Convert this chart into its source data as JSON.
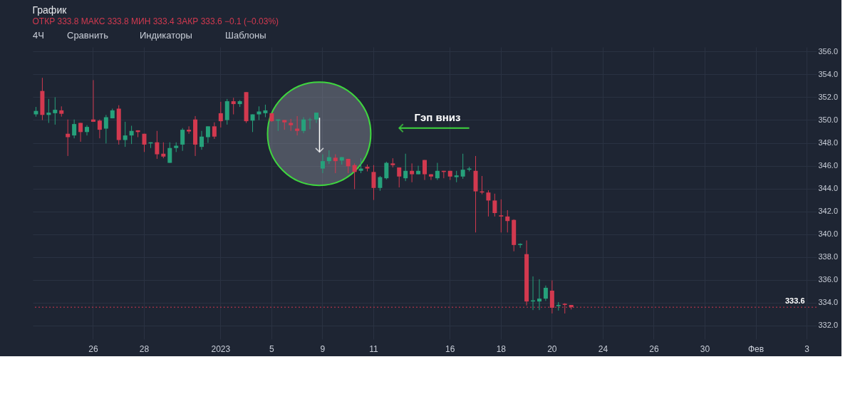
{
  "chart_data": {
    "type": "candlestick",
    "title": "График",
    "subtitle": "ОТКР 333.8 МАКС 333.8 МИН 333.4 ЗАКР 333.6 −0.1 (−0.03%)",
    "annotations": [
      "4Ч",
      "Сравнить",
      "Индикаторы",
      "Шаблоны",
      "Гэп вниз"
    ],
    "categories": [
      null,
      null,
      null,
      null,
      null,
      null,
      null,
      null,
      null,
      "26",
      null,
      null,
      null,
      null,
      null,
      null,
      null,
      "28",
      null,
      null,
      null,
      null,
      null,
      null,
      null,
      null,
      null,
      null,
      null,
      "2023",
      null,
      null,
      null,
      null,
      null,
      null,
      null,
      "5",
      null,
      null,
      null,
      null,
      null,
      null,
      null,
      "9",
      null,
      null,
      null,
      null,
      null,
      null,
      null,
      "11",
      null,
      null,
      null,
      null,
      null,
      null,
      null,
      null,
      null,
      null,
      null,
      "16",
      null,
      null,
      null,
      null,
      null,
      null,
      null,
      "18",
      null,
      null,
      null,
      null,
      null,
      null,
      null,
      "20",
      null,
      null,
      null,
      null,
      null,
      null,
      null,
      "24",
      null,
      null,
      null,
      null,
      null,
      null,
      null,
      "26",
      null,
      null,
      null,
      null,
      null,
      null,
      null,
      "30",
      null,
      null,
      null,
      null,
      null,
      null,
      null,
      "Фев",
      null,
      null,
      null,
      null,
      null,
      null,
      null,
      "3",
      null
    ],
    "ohlc": [
      [
        350.5,
        351.15,
        350.3,
        350.8
      ],
      [
        352.55,
        353.7,
        350.0,
        350.45
      ],
      [
        350.45,
        351.85,
        349.75,
        350.65
      ],
      [
        350.6,
        352.0,
        349.6,
        350.9
      ],
      [
        350.85,
        351.2,
        350.3,
        350.55
      ],
      [
        348.8,
        350.05,
        346.85,
        348.5
      ],
      [
        348.65,
        350.05,
        348.4,
        349.65
      ],
      [
        349.75,
        349.75,
        348.1,
        348.95
      ],
      [
        348.95,
        349.55,
        348.65,
        349.4
      ],
      [
        350.05,
        353.5,
        349.85,
        349.85
      ],
      [
        349.95,
        350.05,
        348.4,
        349.15
      ],
      [
        349.25,
        350.45,
        347.95,
        350.25
      ],
      [
        350.15,
        351.0,
        350.15,
        350.85
      ],
      [
        351.0,
        351.3,
        347.85,
        348.25
      ],
      [
        348.25,
        349.85,
        347.65,
        348.65
      ],
      [
        348.65,
        349.5,
        347.9,
        349.05
      ],
      [
        349.1,
        349.1,
        348.5,
        348.95
      ],
      [
        348.8,
        348.8,
        347.2,
        347.85
      ],
      [
        347.95,
        348.05,
        347.55,
        348.05
      ],
      [
        348.05,
        349.05,
        346.6,
        347.0
      ],
      [
        347.05,
        348.05,
        346.65,
        346.8
      ],
      [
        346.25,
        348.05,
        346.25,
        347.55
      ],
      [
        347.55,
        348.05,
        347.2,
        347.75
      ],
      [
        347.85,
        349.3,
        347.3,
        349.15
      ],
      [
        349.15,
        349.45,
        348.8,
        349.0
      ],
      [
        350.05,
        350.35,
        346.85,
        347.85
      ],
      [
        347.65,
        349.05,
        347.4,
        348.55
      ],
      [
        348.5,
        349.45,
        348.0,
        349.45
      ],
      [
        349.45,
        349.8,
        348.35,
        348.55
      ],
      [
        350.6,
        351.6,
        349.35,
        349.9
      ],
      [
        350.0,
        351.85,
        349.6,
        351.65
      ],
      [
        351.65,
        351.95,
        350.5,
        351.4
      ],
      [
        351.4,
        351.75,
        351.15,
        351.65
      ],
      [
        352.45,
        352.45,
        349.75,
        349.9
      ],
      [
        349.95,
        350.5,
        348.95,
        350.5
      ],
      [
        350.5,
        351.2,
        350.0,
        350.75
      ],
      [
        350.6,
        351.35,
        350.25,
        350.85
      ],
      [
        350.6,
        350.6,
        349.85,
        349.9
      ],
      [
        349.95,
        350.05,
        349.05,
        350.05
      ],
      [
        350.0,
        350.0,
        349.15,
        349.8
      ],
      [
        349.75,
        350.1,
        349.05,
        349.55
      ],
      [
        349.25,
        350.35,
        348.65,
        349.05
      ],
      [
        349.05,
        350.25,
        348.85,
        350.05
      ],
      [
        350.0,
        350.2,
        349.2,
        350.05
      ],
      [
        350.05,
        350.65,
        349.75,
        350.65
      ],
      [
        345.75,
        347.0,
        345.35,
        346.4
      ],
      [
        346.4,
        347.35,
        346.15,
        346.75
      ],
      [
        346.7,
        347.0,
        345.35,
        346.4
      ],
      [
        346.45,
        346.75,
        346.1,
        346.75
      ],
      [
        346.6,
        346.6,
        345.35,
        345.95
      ],
      [
        346.05,
        346.2,
        343.95,
        345.45
      ],
      [
        345.55,
        346.65,
        345.35,
        345.75
      ],
      [
        345.9,
        346.1,
        345.5,
        345.75
      ],
      [
        345.45,
        346.05,
        343.0,
        344.05
      ],
      [
        344.05,
        345.1,
        343.8,
        345.0
      ],
      [
        344.9,
        346.35,
        344.8,
        346.25
      ],
      [
        346.2,
        346.65,
        345.85,
        346.05
      ],
      [
        345.85,
        345.85,
        344.1,
        345.05
      ],
      [
        344.9,
        347.05,
        344.65,
        345.55
      ],
      [
        345.55,
        346.2,
        344.55,
        345.25
      ],
      [
        345.25,
        346.0,
        345.25,
        345.55
      ],
      [
        346.5,
        346.5,
        344.75,
        345.25
      ],
      [
        345.25,
        345.25,
        344.75,
        345.05
      ],
      [
        344.9,
        346.25,
        344.75,
        345.55
      ],
      [
        345.55,
        345.55,
        344.9,
        345.45
      ],
      [
        345.55,
        345.55,
        344.75,
        345.05
      ],
      [
        345.0,
        345.55,
        344.55,
        345.15
      ],
      [
        345.05,
        347.05,
        344.85,
        345.65
      ],
      [
        345.65,
        345.9,
        345.5,
        345.75
      ],
      [
        345.55,
        346.85,
        340.15,
        343.75
      ],
      [
        343.75,
        345.1,
        343.5,
        343.65
      ],
      [
        343.65,
        343.85,
        341.55,
        342.95
      ],
      [
        342.95,
        343.55,
        341.55,
        341.85
      ],
      [
        341.65,
        343.05,
        340.15,
        341.55
      ],
      [
        341.55,
        342.1,
        340.15,
        341.15
      ],
      [
        341.25,
        341.3,
        338.5,
        339.05
      ],
      [
        339.05,
        339.2,
        338.8,
        339.15
      ],
      [
        338.25,
        339.45,
        333.75,
        334.1
      ],
      [
        334.1,
        336.3,
        333.35,
        334.2
      ],
      [
        334.1,
        336.05,
        333.35,
        334.35
      ],
      [
        334.35,
        335.5,
        334.15,
        335.3
      ],
      [
        335.05,
        335.95,
        333.05,
        333.55
      ],
      [
        333.7,
        334.05,
        333.3,
        333.8
      ],
      [
        333.9,
        333.95,
        333.05,
        333.8
      ],
      [
        333.8,
        333.8,
        333.4,
        333.6
      ],
      null,
      null,
      null,
      null,
      null,
      null,
      null,
      null,
      null,
      null,
      null,
      null,
      null,
      null,
      null,
      null,
      null,
      null,
      null,
      null,
      null,
      null,
      null,
      null,
      null,
      null,
      null,
      null,
      null,
      null,
      null,
      null,
      null,
      null,
      null,
      null,
      null,
      null
    ],
    "colors": [
      "#26a17b",
      "#d2394f",
      "#26a17b",
      "#26a17b",
      "#d2394f",
      "#d2394f",
      "#26a17b",
      "#d2394f",
      "#26a17b",
      "#d2394f",
      "#d2394f",
      "#26a17b",
      "#26a17b",
      "#d2394f",
      "#26a17b",
      "#26a17b",
      "#d2394f",
      "#d2394f",
      "#26a17b",
      "#d2394f",
      "#d2394f",
      "#26a17b",
      "#26a17b",
      "#26a17b",
      "#d2394f",
      "#d2394f",
      "#26a17b",
      "#26a17b",
      "#d2394f",
      "#d2394f",
      "#26a17b",
      "#d2394f",
      "#26a17b",
      "#d2394f",
      "#26a17b",
      "#26a17b",
      "#26a17b",
      "#d2394f",
      "#26a17b",
      "#d2394f",
      "#d2394f",
      "#d2394f",
      "#26a17b",
      "#26a17b",
      "#26a17b",
      "#26a17b",
      "#26a17b",
      "#d2394f",
      "#26a17b",
      "#d2394f",
      "#d2394f",
      "#26a17b",
      "#d2394f",
      "#d2394f",
      "#26a17b",
      "#26a17b",
      "#d2394f",
      "#d2394f",
      "#26a17b",
      "#d2394f",
      "#26a17b",
      "#d2394f",
      "#d2394f",
      "#26a17b",
      "#d2394f",
      "#d2394f",
      "#26a17b",
      "#26a17b",
      "#26a17b",
      "#d2394f",
      "#d2394f",
      "#d2394f",
      "#d2394f",
      "#d2394f",
      "#d2394f",
      "#d2394f",
      "#26a17b",
      "#d2394f",
      "#26a17b",
      "#26a17b",
      "#26a17b",
      "#d2394f",
      "#26a17b",
      "#d2394f",
      "#d2394f",
      null,
      null,
      null,
      null,
      null,
      null,
      null,
      null,
      null,
      null,
      null,
      null,
      null,
      null,
      null,
      null,
      null,
      null,
      null,
      null,
      null,
      null,
      null,
      null,
      null,
      null,
      null,
      null,
      null,
      null,
      null,
      null,
      null,
      null,
      null,
      null,
      null,
      null
    ],
    "ylim": [
      330.8,
      356.4
    ],
    "yticks": [
      {
        "value": 332,
        "label": "332.0"
      },
      {
        "value": 334,
        "label": "334.0"
      },
      {
        "value": 336,
        "label": "336.0"
      },
      {
        "value": 338,
        "label": "338.0"
      },
      {
        "value": 340,
        "label": "340.0"
      },
      {
        "value": 342,
        "label": "342.0"
      },
      {
        "value": 344,
        "label": "344.0"
      },
      {
        "value": 346,
        "label": "346.0"
      },
      {
        "value": 348,
        "label": "348.0"
      },
      {
        "value": 350,
        "label": "350.0"
      },
      {
        "value": 352,
        "label": "352.0"
      },
      {
        "value": 354,
        "label": "354.0"
      },
      {
        "value": 356,
        "label": "356.0"
      }
    ],
    "ref_lines": [
      {
        "axis": "y",
        "value": 333.6,
        "label": "333.6",
        "color": "#d2394f",
        "line_style": "dotted"
      }
    ],
    "grid": true
  }
}
